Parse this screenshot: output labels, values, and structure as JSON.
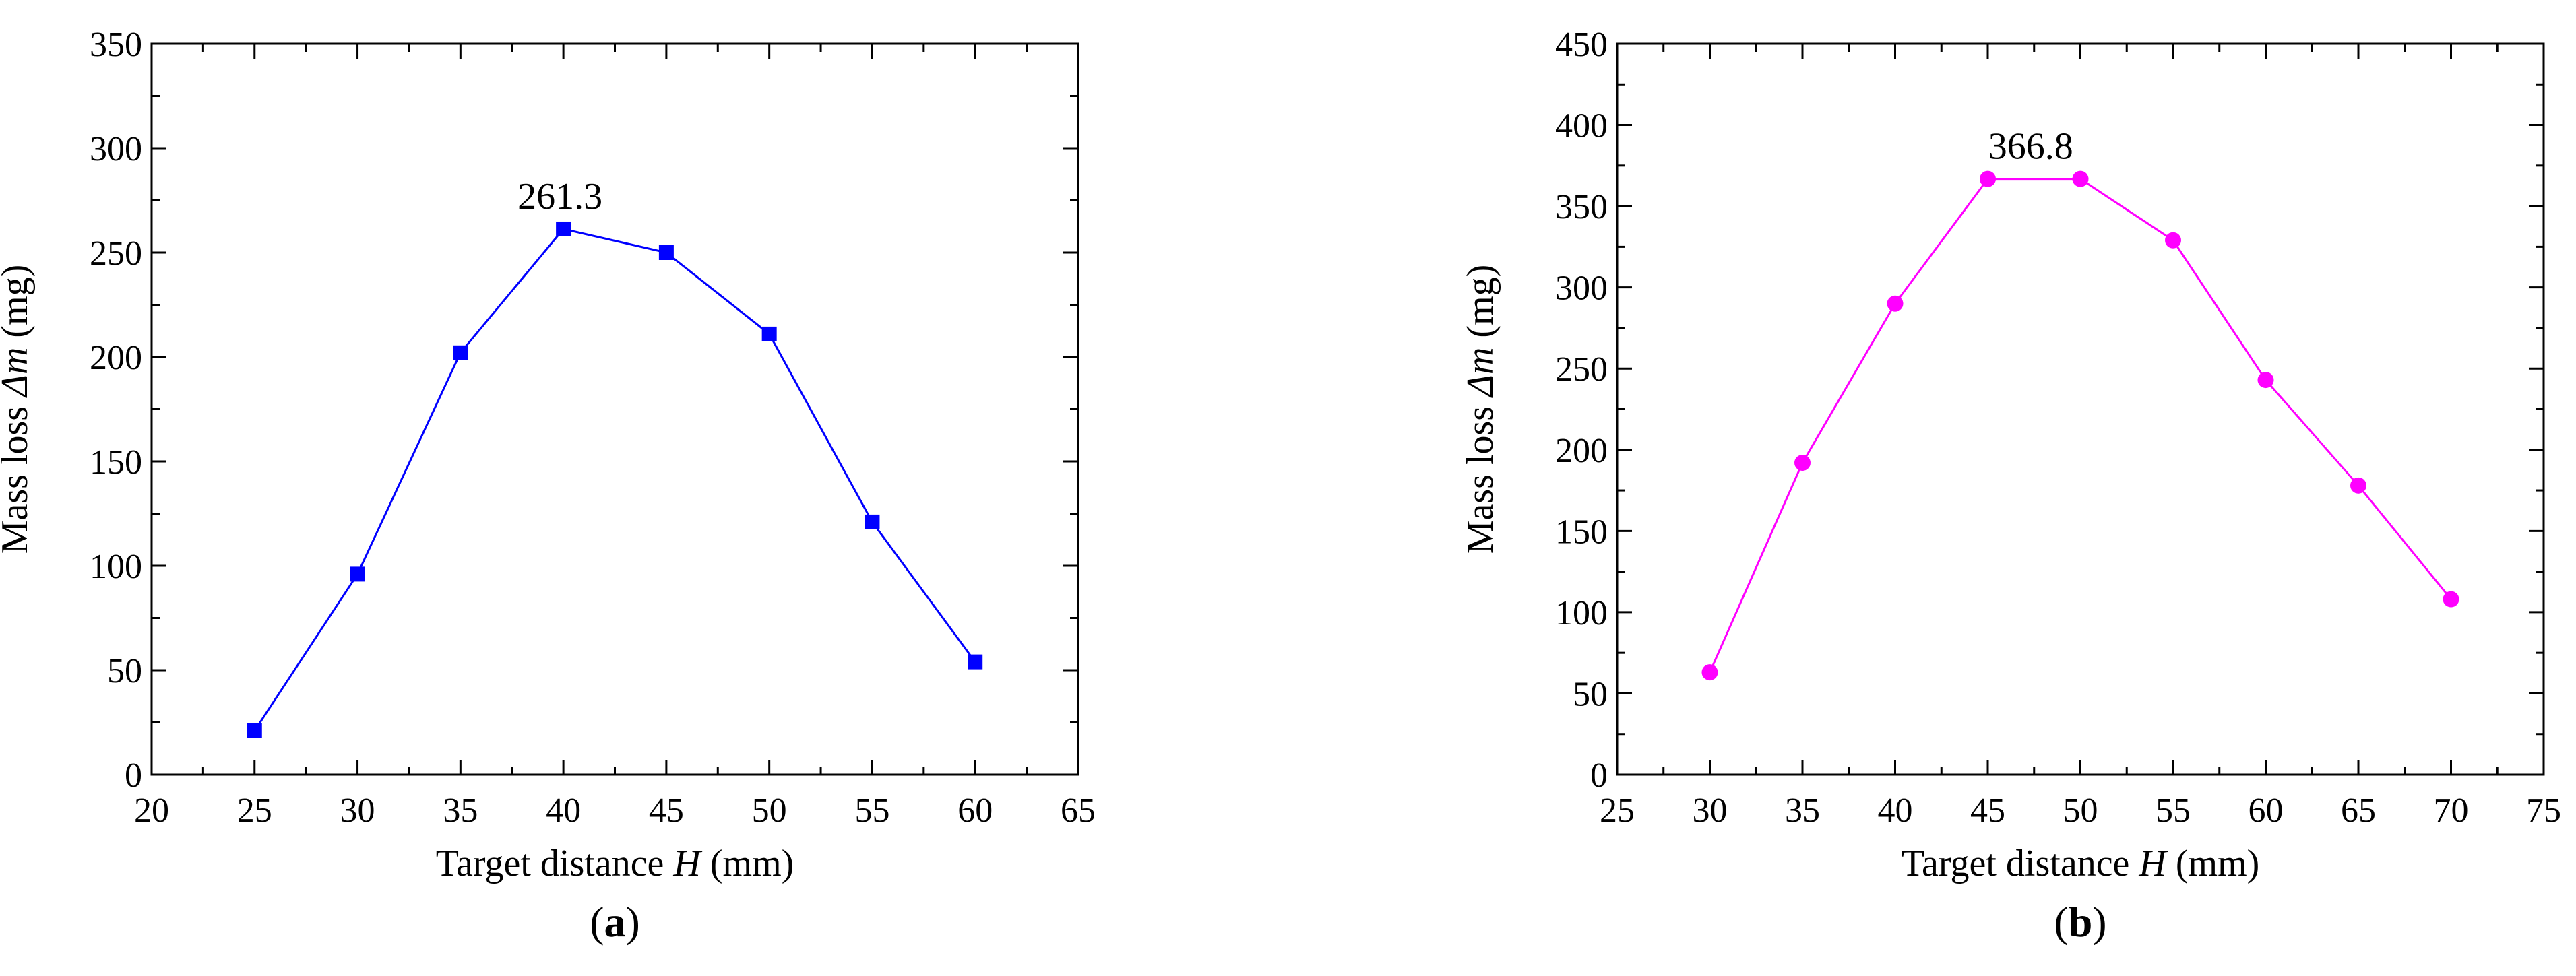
{
  "chart_data": [
    {
      "type": "line",
      "panel_label": "a",
      "xlabel_prefix": "Target distance ",
      "xlabel_var": "H",
      "xlabel_suffix": " (mm)",
      "ylabel_prefix": "Mass loss ",
      "ylabel_var": "Δm",
      "ylabel_suffix": " (mg)",
      "xlim": [
        20,
        65
      ],
      "ylim": [
        0,
        350
      ],
      "xticks": [
        20,
        25,
        30,
        35,
        40,
        45,
        50,
        55,
        60,
        65
      ],
      "yticks": [
        0,
        50,
        100,
        150,
        200,
        250,
        300,
        350
      ],
      "grid": false,
      "color": "#0000ff",
      "marker": "square",
      "series": [
        {
          "x": [
            25,
            30,
            35,
            40,
            45,
            50,
            55,
            60
          ],
          "y": [
            21,
            96,
            202,
            261.3,
            250,
            211,
            121,
            54
          ]
        }
      ],
      "annotation": {
        "text": "261.3",
        "x": 40,
        "y": 261.3
      }
    },
    {
      "type": "line",
      "panel_label": "b",
      "xlabel_prefix": "Target distance ",
      "xlabel_var": "H",
      "xlabel_suffix": " (mm)",
      "ylabel_prefix": "Mass loss ",
      "ylabel_var": "Δm",
      "ylabel_suffix": " (mg)",
      "xlim": [
        25,
        75
      ],
      "ylim": [
        0,
        450
      ],
      "xticks": [
        25,
        30,
        35,
        40,
        45,
        50,
        55,
        60,
        65,
        70,
        75
      ],
      "yticks": [
        0,
        50,
        100,
        150,
        200,
        250,
        300,
        350,
        400,
        450
      ],
      "grid": false,
      "color": "#ff00ff",
      "marker": "circle",
      "series": [
        {
          "x": [
            30,
            35,
            40,
            45,
            50,
            55,
            60,
            65,
            70
          ],
          "y": [
            63,
            192,
            290,
            366.8,
            366.8,
            329,
            243,
            178,
            108
          ]
        }
      ],
      "annotation": {
        "text": "366.8",
        "x": 47.5,
        "y": 366.8
      }
    }
  ]
}
